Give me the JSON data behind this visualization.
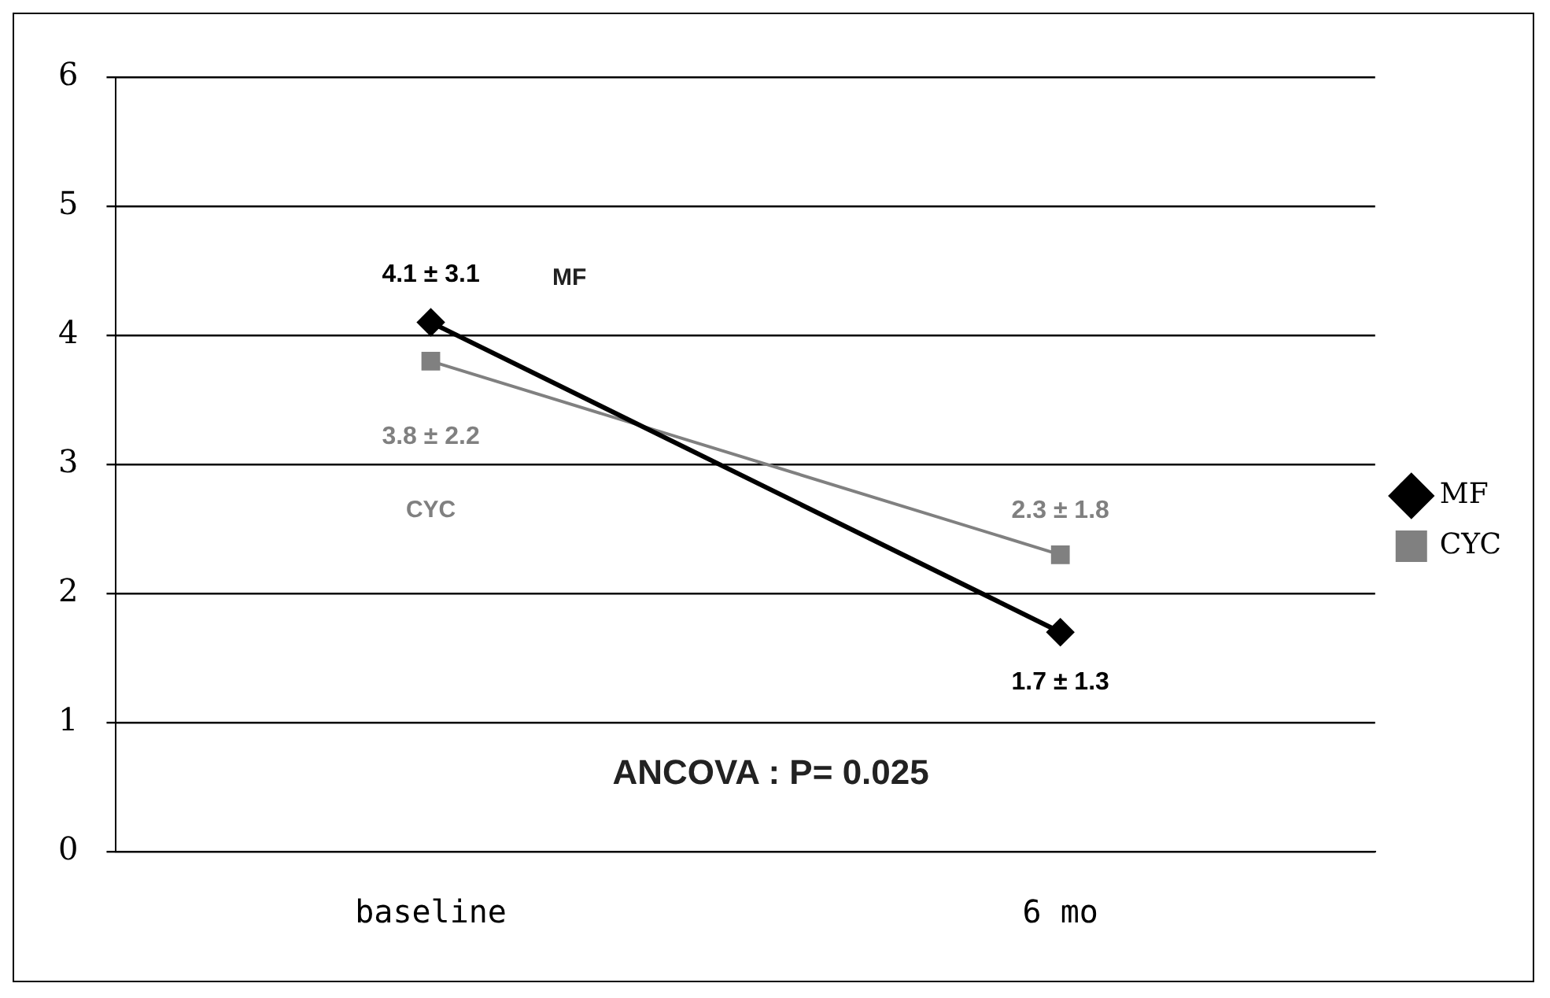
{
  "chart_data": {
    "type": "line",
    "categories": [
      "baseline",
      "6 mo"
    ],
    "series": [
      {
        "name": "MF",
        "color": "#000000",
        "values": [
          4.1,
          1.7
        ],
        "marker": "diamond",
        "value_labels": [
          "4.1 ± 3.1",
          "1.7 ± 1.3"
        ]
      },
      {
        "name": "CYC",
        "color": "#808080",
        "values": [
          3.8,
          2.3
        ],
        "marker": "square",
        "value_labels": [
          "3.8 ± 2.2",
          "2.3 ± 1.8"
        ]
      }
    ],
    "ylim": [
      0,
      6
    ],
    "yticks": [
      0,
      1,
      2,
      3,
      4,
      5,
      6
    ],
    "grid": "y",
    "legend": "right",
    "line_style": "solid",
    "annotations": [
      "ANCOVA : P= 0.025",
      "MF",
      "CYC"
    ]
  }
}
